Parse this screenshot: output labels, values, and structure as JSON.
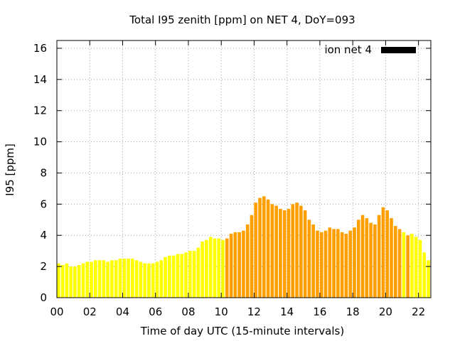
{
  "chart_data": {
    "type": "bar",
    "title": "Total I95 zenith [ppm] on NET 4, DoY=093",
    "xlabel": "Time of day UTC (15-minute intervals)",
    "ylabel": "I95 [ppm]",
    "xlim": [
      0,
      22.75
    ],
    "ylim": [
      0,
      16.5
    ],
    "x_ticks": [
      "00",
      "02",
      "04",
      "06",
      "08",
      "10",
      "12",
      "14",
      "16",
      "18",
      "20",
      "22"
    ],
    "x_tick_values": [
      0,
      2,
      4,
      6,
      8,
      10,
      12,
      14,
      16,
      18,
      20,
      22
    ],
    "y_ticks": [
      "0",
      "2",
      "4",
      "6",
      "8",
      "10",
      "12",
      "14",
      "16"
    ],
    "y_tick_values": [
      0,
      2,
      4,
      6,
      8,
      10,
      12,
      14,
      16
    ],
    "grid": true,
    "legend": {
      "label": "ion net 4",
      "color": "#000000",
      "placement": "top-right"
    },
    "bar_width_hours": 0.2,
    "colors": {
      "low": "#ffff00",
      "high": "#ff9f00"
    },
    "series": [
      {
        "x": [
          0.0,
          0.25,
          0.5,
          0.75,
          1.0,
          1.25,
          1.5,
          1.75,
          2.0,
          2.25,
          2.5,
          2.75,
          3.0,
          3.25,
          3.5,
          3.75,
          4.0,
          4.25,
          4.5,
          4.75,
          5.0,
          5.25,
          5.5,
          5.75,
          6.0,
          6.25,
          6.5,
          6.75,
          7.0,
          7.25,
          7.5,
          7.75,
          8.0,
          8.25,
          8.5,
          8.75,
          9.0,
          9.25,
          9.5,
          9.75,
          10.0,
          10.25,
          10.5,
          10.75,
          11.0,
          11.25,
          11.5,
          11.75,
          12.0,
          12.25,
          12.5,
          12.75,
          13.0,
          13.25,
          13.5,
          13.75,
          14.0,
          14.25,
          14.5,
          14.75,
          15.0,
          15.25,
          15.5,
          15.75,
          16.0,
          16.25,
          16.5,
          16.75,
          17.0,
          17.25,
          17.5,
          17.75,
          18.0,
          18.25,
          18.5,
          18.75,
          19.0,
          19.25,
          19.5,
          19.75,
          20.0,
          20.25,
          20.5,
          20.75,
          21.0,
          21.25,
          21.5,
          21.75,
          22.0,
          22.25,
          22.5
        ],
        "values": [
          2.2,
          2.1,
          2.2,
          2.0,
          2.0,
          2.1,
          2.2,
          2.3,
          2.3,
          2.4,
          2.4,
          2.4,
          2.3,
          2.4,
          2.4,
          2.5,
          2.5,
          2.5,
          2.5,
          2.4,
          2.3,
          2.2,
          2.2,
          2.2,
          2.3,
          2.4,
          2.6,
          2.7,
          2.7,
          2.8,
          2.8,
          2.9,
          3.0,
          3.0,
          3.2,
          3.6,
          3.7,
          3.9,
          3.8,
          3.8,
          3.7,
          3.8,
          4.1,
          4.2,
          4.2,
          4.3,
          4.7,
          5.3,
          6.1,
          6.4,
          6.5,
          6.3,
          6.0,
          5.9,
          5.7,
          5.6,
          5.7,
          6.0,
          6.1,
          5.9,
          5.6,
          5.0,
          4.7,
          4.3,
          4.2,
          4.3,
          4.5,
          4.4,
          4.4,
          4.2,
          4.1,
          4.3,
          4.5,
          5.0,
          5.3,
          5.1,
          4.8,
          4.7,
          5.3,
          5.8,
          5.6,
          5.1,
          4.6,
          4.4,
          4.2,
          4.0,
          4.1,
          3.9,
          3.7,
          2.9,
          2.4
        ],
        "level": [
          "low",
          "low",
          "low",
          "low",
          "low",
          "low",
          "low",
          "low",
          "low",
          "low",
          "low",
          "low",
          "low",
          "low",
          "low",
          "low",
          "low",
          "low",
          "low",
          "low",
          "low",
          "low",
          "low",
          "low",
          "low",
          "low",
          "low",
          "low",
          "low",
          "low",
          "low",
          "low",
          "low",
          "low",
          "low",
          "low",
          "low",
          "low",
          "low",
          "low",
          "low",
          "high",
          "high",
          "high",
          "high",
          "high",
          "high",
          "high",
          "high",
          "high",
          "high",
          "high",
          "high",
          "high",
          "high",
          "high",
          "high",
          "high",
          "high",
          "high",
          "high",
          "high",
          "high",
          "high",
          "high",
          "high",
          "high",
          "high",
          "high",
          "high",
          "high",
          "high",
          "high",
          "high",
          "high",
          "high",
          "high",
          "high",
          "high",
          "high",
          "high",
          "high",
          "high",
          "high",
          "low",
          "high",
          "low",
          "low",
          "low",
          "low",
          "low"
        ]
      }
    ]
  }
}
